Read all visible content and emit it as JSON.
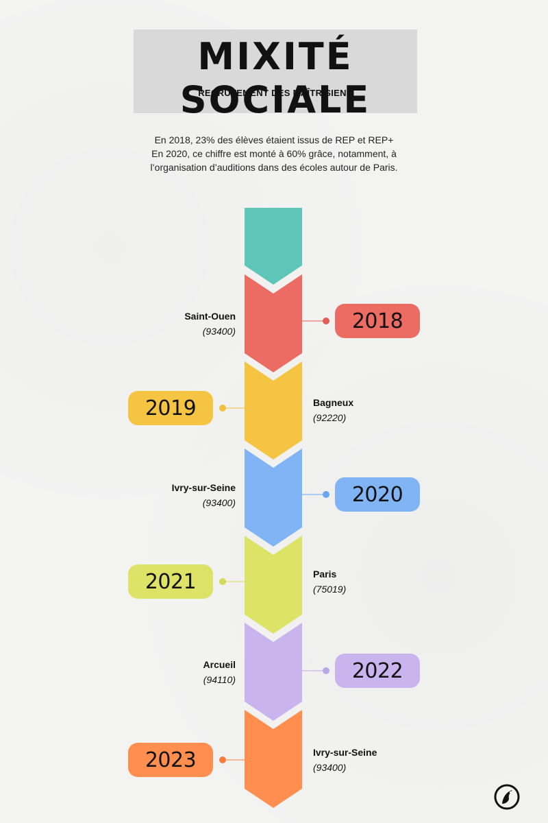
{
  "header": {
    "title": "MIXITÉ SOCIALE",
    "subtitle": "RECRUTEMENT DES MAÎTRISIENS"
  },
  "intro": [
    "En 2018, 23% des élèves étaient issus de REP et REP+",
    "En 2020, ce chiffre est monté à 60% grâce, notamment, à",
    "l’organisation d’auditions dans des écoles autour de Paris."
  ],
  "timeline": [
    {
      "year": "2018",
      "city": "Saint-Ouen",
      "code": "(93400)",
      "color": "#ec6b62",
      "dot": "#e25c57"
    },
    {
      "year": "2019",
      "city": "Bagneux",
      "code": "(92220)",
      "color": "#f6c443",
      "dot": "#f1bf3d"
    },
    {
      "year": "2020",
      "city": "Ivry-sur-Seine",
      "code": "(93400)",
      "color": "#80b4f4",
      "dot": "#6aa6ef"
    },
    {
      "year": "2021",
      "city": "Paris",
      "code": "(75019)",
      "color": "#dde366",
      "dot": "#d4d95a"
    },
    {
      "year": "2022",
      "city": "Arcueil",
      "code": "(94110)",
      "color": "#c9b4ee",
      "dot": "#bba6e6"
    },
    {
      "year": "2023",
      "city": "Ivry-sur-Seine",
      "code": "(93400)",
      "color": "#ff8e4f",
      "dot": "#f77d3f"
    }
  ],
  "spine_top_color": "#5ec6b8",
  "logo": {
    "icon": "bird-logo-icon"
  }
}
